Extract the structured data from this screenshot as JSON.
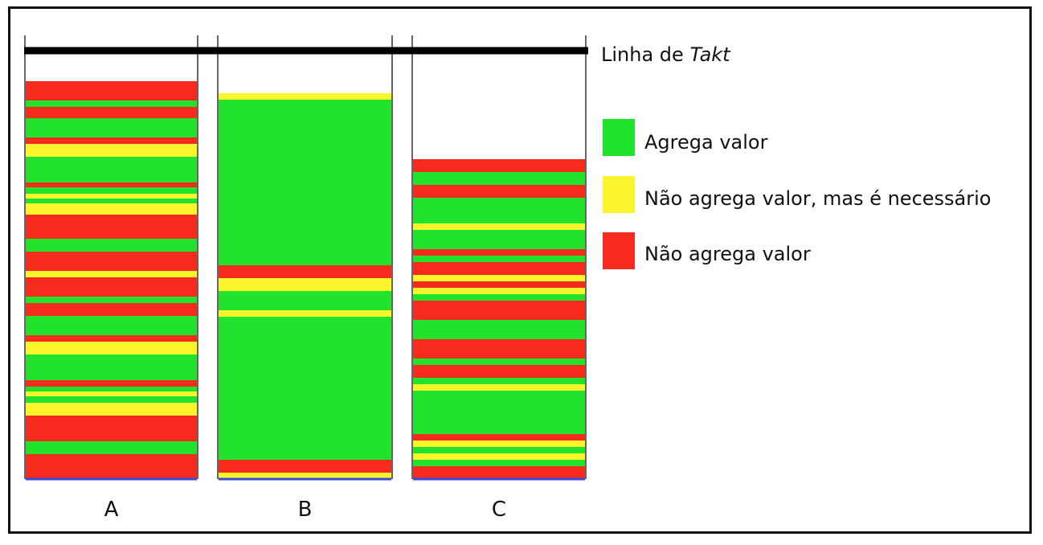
{
  "diagram": {
    "takt_label_prefix": "Linha de ",
    "takt_label_italic": "Takt",
    "legend": [
      {
        "label": "Agrega valor",
        "color": "#22e32c"
      },
      {
        "label": "Não agrega valor, mas é necessário",
        "color": "#fdf52b"
      },
      {
        "label": "Não agrega valor",
        "color": "#f72a1e"
      }
    ],
    "colors": {
      "G": "#22e32c",
      "Y": "#fdf52b",
      "R": "#f72a1e",
      "takt_line": "#000000",
      "baseline": "#3b4bd8"
    },
    "columns": [
      {
        "label": "A",
        "segments": [
          [
            "R",
            24
          ],
          [
            "G",
            8
          ],
          [
            "R",
            14
          ],
          [
            "G",
            24
          ],
          [
            "R",
            8
          ],
          [
            "Y",
            16
          ],
          [
            "G",
            32
          ],
          [
            "R",
            6
          ],
          [
            "G",
            8
          ],
          [
            "Y",
            6
          ],
          [
            "G",
            6
          ],
          [
            "Y",
            14
          ],
          [
            "R",
            30
          ],
          [
            "G",
            16
          ],
          [
            "R",
            24
          ],
          [
            "Y",
            8
          ],
          [
            "R",
            24
          ],
          [
            "G",
            8
          ],
          [
            "R",
            16
          ],
          [
            "G",
            24
          ],
          [
            "R",
            8
          ],
          [
            "Y",
            16
          ],
          [
            "G",
            32
          ],
          [
            "R",
            8
          ],
          [
            "G",
            6
          ],
          [
            "Y",
            6
          ],
          [
            "G",
            8
          ],
          [
            "Y",
            16
          ],
          [
            "R",
            32
          ],
          [
            "G",
            16
          ],
          [
            "R",
            31
          ]
        ]
      },
      {
        "label": "B",
        "segments": [
          [
            "Y",
            8
          ],
          [
            "G",
            206
          ],
          [
            "R",
            16
          ],
          [
            "Y",
            16
          ],
          [
            "G",
            24
          ],
          [
            "Y",
            8
          ],
          [
            "G",
            178
          ],
          [
            "R",
            16
          ],
          [
            "Y",
            8
          ]
        ]
      },
      {
        "label": "C",
        "segments": [
          [
            "R",
            16
          ],
          [
            "G",
            16
          ],
          [
            "R",
            16
          ],
          [
            "G",
            32
          ],
          [
            "Y",
            8
          ],
          [
            "G",
            24
          ],
          [
            "R",
            8
          ],
          [
            "G",
            8
          ],
          [
            "R",
            16
          ],
          [
            "Y",
            8
          ],
          [
            "R",
            8
          ],
          [
            "Y",
            8
          ],
          [
            "G",
            8
          ],
          [
            "R",
            24
          ],
          [
            "G",
            24
          ],
          [
            "R",
            24
          ],
          [
            "G",
            8
          ],
          [
            "R",
            16
          ],
          [
            "G",
            8
          ],
          [
            "Y",
            8
          ],
          [
            "G",
            54
          ],
          [
            "R",
            8
          ],
          [
            "Y",
            8
          ],
          [
            "G",
            8
          ],
          [
            "Y",
            8
          ],
          [
            "G",
            8
          ],
          [
            "R",
            16
          ]
        ]
      }
    ]
  }
}
